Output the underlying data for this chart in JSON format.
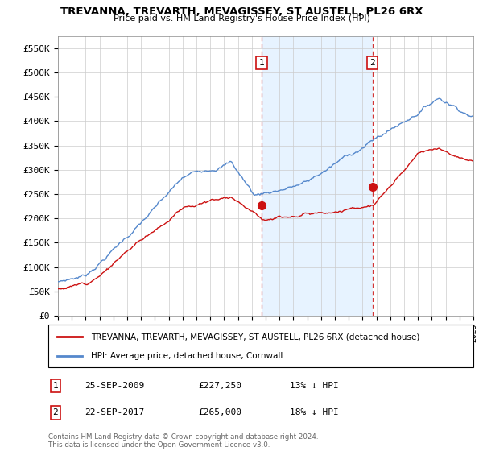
{
  "title": "TREVANNA, TREVARTH, MEVAGISSEY, ST AUSTELL, PL26 6RX",
  "subtitle": "Price paid vs. HM Land Registry's House Price Index (HPI)",
  "ylim": [
    0,
    575000
  ],
  "yticks": [
    0,
    50000,
    100000,
    150000,
    200000,
    250000,
    300000,
    350000,
    400000,
    450000,
    500000,
    550000
  ],
  "ytick_labels": [
    "£0",
    "£50K",
    "£100K",
    "£150K",
    "£200K",
    "£250K",
    "£300K",
    "£350K",
    "£400K",
    "£450K",
    "£500K",
    "£550K"
  ],
  "hpi_color": "#5588cc",
  "price_color": "#cc1111",
  "shade_color": "#ddeeff",
  "marker1_x": 2009.72,
  "marker1_y": 227250,
  "marker2_x": 2017.72,
  "marker2_y": 265000,
  "marker1_label": "25-SEP-2009",
  "marker1_price": "£227,250",
  "marker1_hpi": "13% ↓ HPI",
  "marker2_label": "22-SEP-2017",
  "marker2_price": "£265,000",
  "marker2_hpi": "18% ↓ HPI",
  "legend_line1": "TREVANNA, TREVARTH, MEVAGISSEY, ST AUSTELL, PL26 6RX (detached house)",
  "legend_line2": "HPI: Average price, detached house, Cornwall",
  "footnote": "Contains HM Land Registry data © Crown copyright and database right 2024.\nThis data is licensed under the Open Government Licence v3.0.",
  "xmin": 1995,
  "xmax": 2025
}
